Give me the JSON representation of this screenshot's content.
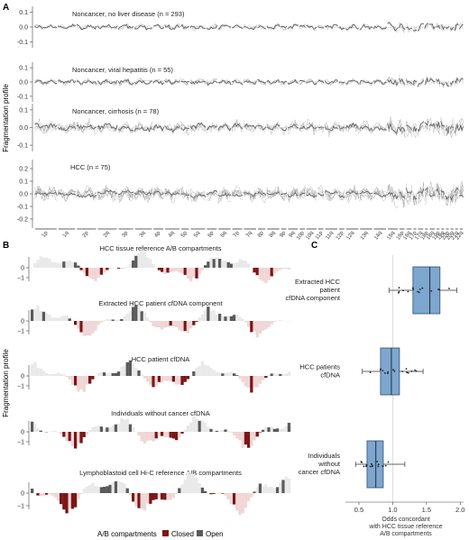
{
  "chart_data": [
    {
      "type": "line",
      "panel_label": "A",
      "ylabel": "Fragmentation profile",
      "yticks": [
        0.1,
        0.0,
        -0.1
      ],
      "ytick_labels": [
        "0.1",
        "0.0",
        "-0.1"
      ],
      "yticks_last": [
        0.2,
        0.1,
        0.0,
        -0.1,
        -0.2
      ],
      "ytick_labels_last": [
        "0.2",
        "0.1",
        "0.0",
        "-0.1",
        "-0.2"
      ],
      "x_categories": [
        "1p",
        "1q",
        "2p",
        "2q",
        "3p",
        "3q",
        "4p",
        "4q",
        "5p",
        "5q",
        "6p",
        "6q",
        "7p",
        "7q",
        "8p",
        "8q",
        "9p",
        "9q",
        "10p",
        "10q",
        "11p",
        "11q",
        "12p",
        "12q",
        "13q",
        "14q",
        "15q",
        "16p",
        "16q",
        "17p",
        "17q",
        "18p",
        "18q",
        "19p",
        "19q",
        "20p",
        "20q",
        "21q",
        "22q"
      ],
      "series": [
        {
          "name": "Noncancer, no liver disease",
          "n_label": "293",
          "spread": 0.2
        },
        {
          "name": "Noncancer, viral hepatitis",
          "n_label": "55",
          "spread": 0.35
        },
        {
          "name": "Noncancer, cirrhosis",
          "n_label": "78",
          "spread": 0.9
        },
        {
          "name": "HCC",
          "n_label": "75",
          "spread": 1.8
        }
      ]
    },
    {
      "type": "bar",
      "panel_label": "B",
      "ylabel": "Fragmentation profile",
      "yticks": [
        0,
        -1
      ],
      "ytick_labels": [
        "0",
        "−1"
      ],
      "xlabel": "A/B compartments",
      "legend": [
        {
          "label": "Closed",
          "color": "#7a1616"
        },
        {
          "label": "Open",
          "color": "#5a5a5a"
        }
      ],
      "legend_position": "bottom",
      "series": [
        {
          "name": "HCC tissue reference A/B compartments"
        },
        {
          "name": "Extracted HCC patient cfDNA component"
        },
        {
          "name": "HCC patient cfDNA"
        },
        {
          "name": "Individuals without cancer cfDNA"
        },
        {
          "name": "Lymphoblastoid cell Hi-C reference A/B compartments"
        }
      ]
    },
    {
      "type": "box",
      "panel_label": "C",
      "xlabel": "Odds concordant with HCC tissue reference A/B compartments",
      "xlabel_lines": [
        "Odds concordant",
        "with HCC tissue reference",
        "A/B compartments"
      ],
      "xlim": [
        0.3,
        2.05
      ],
      "xticks": [
        0.5,
        1.0,
        1.5,
        2.0
      ],
      "xtick_labels": [
        "0.5",
        "1.0",
        "1.5",
        "2.0"
      ],
      "reference_line": 1.0,
      "categories": [
        {
          "label_lines": [
            "Extracted HCC",
            "patient",
            "cfDNA component"
          ],
          "q1": 1.3,
          "median": 1.55,
          "q3": 1.7,
          "whisker_low": 0.95,
          "whisker_high": 1.95
        },
        {
          "label_lines": [
            "HCC patients",
            "cfDNA"
          ],
          "q1": 0.82,
          "median": 0.98,
          "q3": 1.1,
          "whisker_low": 0.55,
          "whisker_high": 1.45
        },
        {
          "label_lines": [
            "Individuals",
            "without",
            "cancer cfDNA"
          ],
          "q1": 0.62,
          "median": 0.75,
          "q3": 0.86,
          "whisker_low": 0.45,
          "whisker_high": 1.18
        }
      ],
      "box_color": "#7ea6cf"
    }
  ]
}
